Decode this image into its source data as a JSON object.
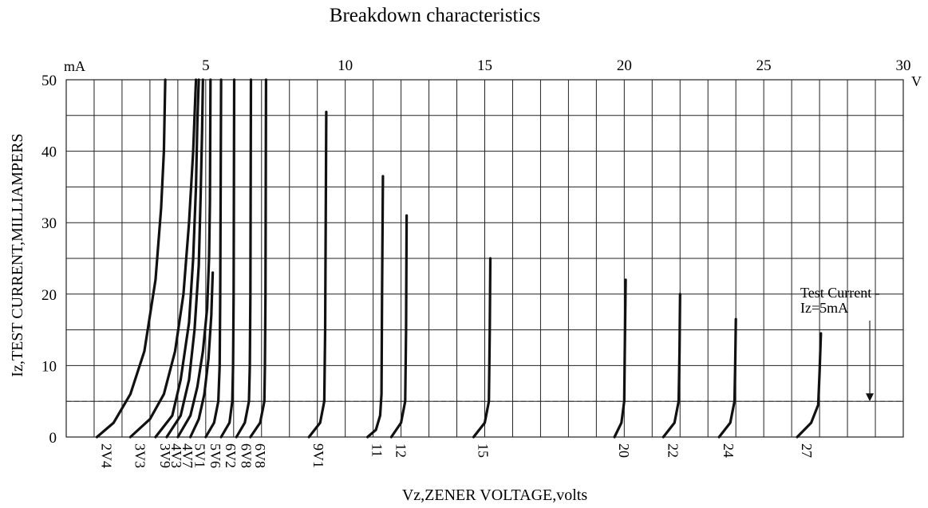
{
  "chart_data": {
    "type": "line",
    "title": "Breakdown characteristics",
    "xlabel": "Vz,ZENER VOLTAGE,volts",
    "ylabel": "Iz,TEST CURRENT,MILLIAMPERS",
    "x_unit": "V",
    "y_unit": "mA",
    "xlim": [
      0,
      30
    ],
    "ylim": [
      0,
      50
    ],
    "x_ticks": [
      5,
      10,
      15,
      20,
      25,
      30
    ],
    "y_ticks": [
      0,
      10,
      20,
      30,
      40,
      50
    ],
    "x_grid_step": 1,
    "y_grid_step": 5,
    "grid": true,
    "series": [
      {
        "name": "2V4",
        "points": [
          [
            1.1,
            0
          ],
          [
            1.7,
            2
          ],
          [
            2.3,
            6
          ],
          [
            2.8,
            12
          ],
          [
            3.2,
            22
          ],
          [
            3.4,
            32
          ],
          [
            3.5,
            40
          ],
          [
            3.55,
            50
          ]
        ]
      },
      {
        "name": "3V3",
        "points": [
          [
            2.3,
            0
          ],
          [
            3.0,
            2.5
          ],
          [
            3.5,
            6
          ],
          [
            3.9,
            12
          ],
          [
            4.2,
            20
          ],
          [
            4.4,
            30
          ],
          [
            4.55,
            40
          ],
          [
            4.65,
            50
          ]
        ]
      },
      {
        "name": "3V9",
        "points": [
          [
            3.2,
            0
          ],
          [
            3.8,
            3
          ],
          [
            4.1,
            8
          ],
          [
            4.4,
            16
          ],
          [
            4.55,
            25
          ],
          [
            4.65,
            35
          ],
          [
            4.7,
            44
          ],
          [
            4.75,
            50
          ]
        ]
      },
      {
        "name": "4V3",
        "points": [
          [
            3.6,
            0
          ],
          [
            4.1,
            3
          ],
          [
            4.4,
            8
          ],
          [
            4.6,
            15
          ],
          [
            4.75,
            24
          ],
          [
            4.82,
            34
          ],
          [
            4.87,
            43
          ],
          [
            4.9,
            50
          ]
        ]
      },
      {
        "name": "4V7",
        "points": [
          [
            4.0,
            0
          ],
          [
            4.45,
            3
          ],
          [
            4.7,
            7
          ],
          [
            4.9,
            12
          ],
          [
            5.05,
            18
          ],
          [
            5.12,
            25
          ],
          [
            5.15,
            33
          ],
          [
            5.17,
            50
          ]
        ]
      },
      {
        "name": "5V1",
        "points": [
          [
            4.45,
            0
          ],
          [
            4.75,
            2.5
          ],
          [
            4.95,
            6
          ],
          [
            5.1,
            11
          ],
          [
            5.2,
            17
          ],
          [
            5.25,
            23
          ]
        ]
      },
      {
        "name": "5V6",
        "points": [
          [
            5.0,
            0
          ],
          [
            5.3,
            2
          ],
          [
            5.45,
            5
          ],
          [
            5.5,
            10
          ],
          [
            5.52,
            20
          ],
          [
            5.55,
            50
          ]
        ]
      },
      {
        "name": "6V2",
        "points": [
          [
            5.55,
            0
          ],
          [
            5.85,
            2
          ],
          [
            5.95,
            5
          ],
          [
            5.98,
            10
          ],
          [
            6.0,
            20
          ],
          [
            6.02,
            50
          ]
        ]
      },
      {
        "name": "6V8",
        "points": [
          [
            6.1,
            0
          ],
          [
            6.4,
            2
          ],
          [
            6.55,
            5
          ],
          [
            6.58,
            10
          ],
          [
            6.6,
            20
          ],
          [
            6.62,
            50
          ]
        ]
      },
      {
        "name": "6V8",
        "points": [
          [
            6.6,
            0
          ],
          [
            6.95,
            2
          ],
          [
            7.1,
            5
          ],
          [
            7.12,
            10
          ],
          [
            7.14,
            20
          ],
          [
            7.16,
            50
          ]
        ]
      },
      {
        "name": "9V1",
        "points": [
          [
            8.7,
            0
          ],
          [
            9.1,
            2
          ],
          [
            9.25,
            5
          ],
          [
            9.28,
            15
          ],
          [
            9.3,
            30
          ],
          [
            9.32,
            45.5
          ]
        ]
      },
      {
        "name": "11",
        "points": [
          [
            10.8,
            0
          ],
          [
            11.1,
            1
          ],
          [
            11.25,
            3
          ],
          [
            11.3,
            6
          ],
          [
            11.32,
            20
          ],
          [
            11.35,
            36.5
          ]
        ]
      },
      {
        "name": "12",
        "points": [
          [
            11.65,
            0
          ],
          [
            12.0,
            2
          ],
          [
            12.15,
            5
          ],
          [
            12.18,
            15
          ],
          [
            12.2,
            31
          ]
        ]
      },
      {
        "name": "15",
        "points": [
          [
            14.6,
            0
          ],
          [
            15.0,
            2
          ],
          [
            15.15,
            5
          ],
          [
            15.18,
            15
          ],
          [
            15.2,
            25
          ]
        ]
      },
      {
        "name": "20",
        "points": [
          [
            19.65,
            0
          ],
          [
            19.9,
            2
          ],
          [
            20.0,
            5
          ],
          [
            20.02,
            12
          ],
          [
            20.05,
            22
          ]
        ]
      },
      {
        "name": "22",
        "points": [
          [
            21.4,
            0
          ],
          [
            21.8,
            2
          ],
          [
            21.95,
            5
          ],
          [
            21.98,
            12
          ],
          [
            22.0,
            20
          ]
        ]
      },
      {
        "name": "24",
        "points": [
          [
            23.4,
            0
          ],
          [
            23.8,
            2
          ],
          [
            23.95,
            5
          ],
          [
            23.98,
            11
          ],
          [
            24.0,
            16.5
          ]
        ]
      },
      {
        "name": "27",
        "points": [
          [
            26.2,
            0
          ],
          [
            26.7,
            2
          ],
          [
            26.95,
            4.5
          ],
          [
            27.0,
            9
          ],
          [
            27.05,
            14.5
          ]
        ]
      }
    ],
    "reference_line": {
      "y": 5,
      "style": "dashed"
    },
    "annotation": {
      "lines": [
        "Test Current -",
        "Iz=5mA"
      ],
      "arrow_x": 28.8,
      "arrow_to_y": 5
    }
  }
}
